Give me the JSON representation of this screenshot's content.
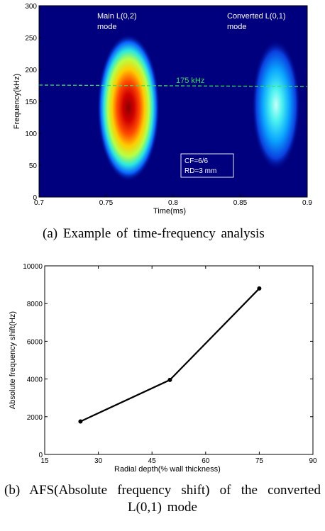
{
  "chart_data": [
    {
      "type": "heatmap",
      "xlabel": "Time(ms)",
      "ylabel": "Frequency(kHz)",
      "xlim": [
        0.7,
        0.9
      ],
      "ylim": [
        0,
        300
      ],
      "xticks": [
        "0.7",
        "0.75",
        "0.8",
        "0.85",
        "0.9"
      ],
      "yticks": [
        "0",
        "50",
        "100",
        "150",
        "200",
        "250",
        "300"
      ],
      "blobs": [
        {
          "label": "Main L(0,2) mode",
          "label_lines": [
            "Main L(0,2)",
            "mode"
          ],
          "t_center_ms": 0.765,
          "f_center_khz": 140,
          "relative_intensity": 1.0
        },
        {
          "label": "Converted L(0,1) mode",
          "label_lines": [
            "Converted L(0,1)",
            "mode"
          ],
          "t_center_ms": 0.875,
          "f_center_khz": 145,
          "relative_intensity": 0.45
        }
      ],
      "reference_line": {
        "label": "175 kHz",
        "f_khz": 175,
        "color": "#36e05a"
      },
      "annotation_lines": [
        "CF=6/6",
        "RD=3 mm"
      ],
      "colors": {
        "background": "#00007f",
        "reference": "#36e05a"
      },
      "caption": "(a) Example of time-frequency analysis"
    },
    {
      "type": "line",
      "xlabel": "Radial depth(% wall thickness)",
      "ylabel": "Absolute frequency shift(Hz)",
      "xlim": [
        15,
        90
      ],
      "ylim": [
        0,
        10000
      ],
      "xticks": [
        "15",
        "30",
        "45",
        "60",
        "75",
        "90"
      ],
      "yticks": [
        "0",
        "2000",
        "4000",
        "6000",
        "8000",
        "10000"
      ],
      "series": [
        {
          "x": [
            25,
            50,
            75
          ],
          "y": [
            1750,
            3950,
            8800
          ]
        }
      ],
      "grid": false,
      "caption_lines": [
        "(b) AFS(Absolute frequency shift) of the converted",
        "L(0,1) mode"
      ]
    }
  ]
}
